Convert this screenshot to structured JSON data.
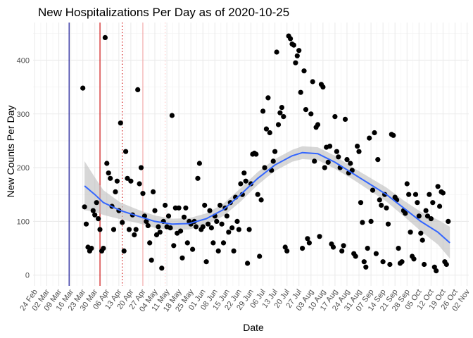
{
  "chart_data": {
    "type": "scatter",
    "title": "New Hospitalizations Per Day as of 2020-10-25",
    "xlabel": "Date",
    "ylabel": "New Counts Per Day",
    "x_ticks": [
      "24 Feb",
      "02 Mar",
      "09 Mar",
      "16 Mar",
      "23 Mar",
      "30 Mar",
      "06 Apr",
      "13 Apr",
      "20 Apr",
      "27 Apr",
      "04 May",
      "11 May",
      "18 May",
      "25 May",
      "01 Jun",
      "08 Jun",
      "15 Jun",
      "22 Jun",
      "29 Jun",
      "06 Jul",
      "13 Jul",
      "20 Jul",
      "27 Jul",
      "03 Aug",
      "10 Aug",
      "17 Aug",
      "24 Aug",
      "31 Aug",
      "07 Sep",
      "14 Sep",
      "21 Sep",
      "28 Sep",
      "05 Oct",
      "12 Oct",
      "19 Oct",
      "26 Oct",
      "02 Nov"
    ],
    "x_range_days": [
      -1,
      253
    ],
    "x_origin_date": "2020-02-24",
    "y_ticks": [
      0,
      100,
      200,
      300,
      400
    ],
    "ylim": [
      -20,
      470
    ],
    "grid": true,
    "vertical_lines": [
      {
        "day": 20,
        "color": "#00008b",
        "style": "solid"
      },
      {
        "day": 38,
        "color": "#cc0000",
        "style": "solid"
      },
      {
        "day": 51,
        "color": "#cc0000",
        "style": "dotted"
      },
      {
        "day": 63,
        "color": "#f4a3a3",
        "style": "solid"
      },
      {
        "day": 76,
        "color": "#ffc8c8",
        "style": "dotted"
      }
    ],
    "smooth": {
      "color": "#3366ff",
      "band_color": "#bdbdbd",
      "points": [
        [
          29,
          166
        ],
        [
          35,
          150
        ],
        [
          40,
          135
        ],
        [
          50,
          120
        ],
        [
          60,
          110
        ],
        [
          70,
          100
        ],
        [
          80,
          95
        ],
        [
          90,
          96
        ],
        [
          100,
          105
        ],
        [
          110,
          122
        ],
        [
          120,
          150
        ],
        [
          130,
          180
        ],
        [
          140,
          205
        ],
        [
          150,
          222
        ],
        [
          156,
          228
        ],
        [
          165,
          226
        ],
        [
          175,
          210
        ],
        [
          185,
          190
        ],
        [
          195,
          170
        ],
        [
          205,
          150
        ],
        [
          215,
          125
        ],
        [
          225,
          100
        ],
        [
          235,
          80
        ],
        [
          242,
          60
        ]
      ],
      "upper": [
        [
          29,
          212
        ],
        [
          35,
          182
        ],
        [
          40,
          158
        ],
        [
          50,
          135
        ],
        [
          60,
          122
        ],
        [
          70,
          111
        ],
        [
          80,
          105
        ],
        [
          90,
          106
        ],
        [
          100,
          115
        ],
        [
          110,
          133
        ],
        [
          120,
          162
        ],
        [
          130,
          192
        ],
        [
          140,
          216
        ],
        [
          150,
          233
        ],
        [
          156,
          240
        ],
        [
          165,
          238
        ],
        [
          175,
          222
        ],
        [
          185,
          201
        ],
        [
          195,
          182
        ],
        [
          205,
          163
        ],
        [
          215,
          139
        ],
        [
          225,
          118
        ],
        [
          235,
          103
        ],
        [
          242,
          90
        ]
      ],
      "lower": [
        [
          29,
          121
        ],
        [
          35,
          118
        ],
        [
          40,
          112
        ],
        [
          50,
          104
        ],
        [
          60,
          97
        ],
        [
          70,
          88
        ],
        [
          80,
          84
        ],
        [
          90,
          85
        ],
        [
          100,
          94
        ],
        [
          110,
          110
        ],
        [
          120,
          137
        ],
        [
          130,
          168
        ],
        [
          140,
          194
        ],
        [
          150,
          211
        ],
        [
          156,
          216
        ],
        [
          165,
          214
        ],
        [
          175,
          198
        ],
        [
          185,
          179
        ],
        [
          195,
          158
        ],
        [
          205,
          137
        ],
        [
          215,
          110
        ],
        [
          225,
          82
        ],
        [
          235,
          57
        ],
        [
          242,
          31
        ]
      ]
    },
    "points": [
      [
        28,
        348
      ],
      [
        29,
        127
      ],
      [
        30,
        95
      ],
      [
        31,
        52
      ],
      [
        32,
        45
      ],
      [
        33,
        50
      ],
      [
        34,
        120
      ],
      [
        35,
        112
      ],
      [
        36,
        135
      ],
      [
        37,
        105
      ],
      [
        38,
        85
      ],
      [
        39,
        45
      ],
      [
        40,
        50
      ],
      [
        41,
        442
      ],
      [
        42,
        208
      ],
      [
        43,
        190
      ],
      [
        44,
        180
      ],
      [
        45,
        128
      ],
      [
        46,
        85
      ],
      [
        47,
        155
      ],
      [
        48,
        175
      ],
      [
        49,
        120
      ],
      [
        50,
        283
      ],
      [
        51,
        98
      ],
      [
        52,
        45
      ],
      [
        53,
        230
      ],
      [
        54,
        180
      ],
      [
        55,
        85
      ],
      [
        56,
        175
      ],
      [
        57,
        112
      ],
      [
        58,
        75
      ],
      [
        59,
        85
      ],
      [
        60,
        345
      ],
      [
        61,
        170
      ],
      [
        62,
        200
      ],
      [
        63,
        152
      ],
      [
        64,
        110
      ],
      [
        65,
        100
      ],
      [
        66,
        92
      ],
      [
        67,
        60
      ],
      [
        68,
        28
      ],
      [
        69,
        155
      ],
      [
        70,
        120
      ],
      [
        71,
        75
      ],
      [
        72,
        90
      ],
      [
        73,
        80
      ],
      [
        74,
        13
      ],
      [
        75,
        100
      ],
      [
        76,
        130
      ],
      [
        77,
        90
      ],
      [
        78,
        110
      ],
      [
        79,
        88
      ],
      [
        80,
        297
      ],
      [
        81,
        55
      ],
      [
        82,
        125
      ],
      [
        83,
        78
      ],
      [
        84,
        125
      ],
      [
        85,
        82
      ],
      [
        86,
        32
      ],
      [
        87,
        108
      ],
      [
        88,
        125
      ],
      [
        89,
        60
      ],
      [
        90,
        100
      ],
      [
        91,
        95
      ],
      [
        92,
        48
      ],
      [
        93,
        100
      ],
      [
        94,
        90
      ],
      [
        95,
        180
      ],
      [
        96,
        208
      ],
      [
        97,
        85
      ],
      [
        98,
        90
      ],
      [
        99,
        130
      ],
      [
        100,
        25
      ],
      [
        101,
        95
      ],
      [
        102,
        120
      ],
      [
        103,
        88
      ],
      [
        104,
        60
      ],
      [
        105,
        110
      ],
      [
        106,
        100
      ],
      [
        107,
        45
      ],
      [
        108,
        130
      ],
      [
        109,
        95
      ],
      [
        110,
        60
      ],
      [
        111,
        125
      ],
      [
        112,
        110
      ],
      [
        113,
        80
      ],
      [
        114,
        135
      ],
      [
        115,
        88
      ],
      [
        116,
        45
      ],
      [
        117,
        145
      ],
      [
        118,
        100
      ],
      [
        119,
        85
      ],
      [
        120,
        170
      ],
      [
        121,
        150
      ],
      [
        122,
        190
      ],
      [
        123,
        175
      ],
      [
        124,
        22
      ],
      [
        125,
        85
      ],
      [
        126,
        170
      ],
      [
        127,
        225
      ],
      [
        128,
        227
      ],
      [
        129,
        225
      ],
      [
        130,
        150
      ],
      [
        131,
        35
      ],
      [
        132,
        140
      ],
      [
        133,
        305
      ],
      [
        134,
        200
      ],
      [
        135,
        272
      ],
      [
        136,
        330
      ],
      [
        137,
        265
      ],
      [
        138,
        195
      ],
      [
        139,
        212
      ],
      [
        140,
        230
      ],
      [
        141,
        415
      ],
      [
        142,
        280
      ],
      [
        143,
        302
      ],
      [
        144,
        312
      ],
      [
        145,
        295
      ],
      [
        146,
        52
      ],
      [
        147,
        45
      ],
      [
        148,
        445
      ],
      [
        149,
        440
      ],
      [
        150,
        430
      ],
      [
        151,
        428
      ],
      [
        152,
        395
      ],
      [
        153,
        408
      ],
      [
        154,
        418
      ],
      [
        155,
        340
      ],
      [
        156,
        50
      ],
      [
        157,
        380
      ],
      [
        158,
        308
      ],
      [
        159,
        68
      ],
      [
        160,
        60
      ],
      [
        161,
        300
      ],
      [
        162,
        360
      ],
      [
        163,
        212
      ],
      [
        164,
        275
      ],
      [
        165,
        280
      ],
      [
        166,
        72
      ],
      [
        167,
        355
      ],
      [
        168,
        350
      ],
      [
        169,
        200
      ],
      [
        170,
        238
      ],
      [
        171,
        210
      ],
      [
        172,
        240
      ],
      [
        173,
        58
      ],
      [
        174,
        52
      ],
      [
        175,
        295
      ],
      [
        176,
        230
      ],
      [
        177,
        220
      ],
      [
        178,
        200
      ],
      [
        179,
        45
      ],
      [
        180,
        55
      ],
      [
        181,
        290
      ],
      [
        182,
        215
      ],
      [
        183,
        190
      ],
      [
        184,
        208
      ],
      [
        185,
        195
      ],
      [
        186,
        40
      ],
      [
        187,
        35
      ],
      [
        188,
        240
      ],
      [
        189,
        230
      ],
      [
        190,
        135
      ],
      [
        191,
        98
      ],
      [
        192,
        25
      ],
      [
        193,
        15
      ],
      [
        194,
        50
      ],
      [
        195,
        255
      ],
      [
        196,
        100
      ],
      [
        197,
        158
      ],
      [
        198,
        265
      ],
      [
        199,
        40
      ],
      [
        200,
        215
      ],
      [
        201,
        140
      ],
      [
        202,
        130
      ],
      [
        203,
        25
      ],
      [
        204,
        150
      ],
      [
        205,
        125
      ],
      [
        206,
        95
      ],
      [
        207,
        20
      ],
      [
        208,
        262
      ],
      [
        209,
        260
      ],
      [
        210,
        145
      ],
      [
        211,
        140
      ],
      [
        212,
        50
      ],
      [
        213,
        22
      ],
      [
        214,
        25
      ],
      [
        215,
        120
      ],
      [
        216,
        115
      ],
      [
        217,
        170
      ],
      [
        218,
        150
      ],
      [
        219,
        80
      ],
      [
        220,
        35
      ],
      [
        221,
        30
      ],
      [
        222,
        150
      ],
      [
        223,
        135
      ],
      [
        224,
        110
      ],
      [
        225,
        78
      ],
      [
        226,
        65
      ],
      [
        227,
        20
      ],
      [
        228,
        120
      ],
      [
        229,
        110
      ],
      [
        230,
        150
      ],
      [
        231,
        105
      ],
      [
        232,
        135
      ],
      [
        233,
        15
      ],
      [
        234,
        8
      ],
      [
        235,
        165
      ],
      [
        236,
        128
      ],
      [
        237,
        155
      ],
      [
        238,
        153
      ],
      [
        239,
        25
      ],
      [
        240,
        20
      ],
      [
        241,
        100
      ]
    ]
  }
}
